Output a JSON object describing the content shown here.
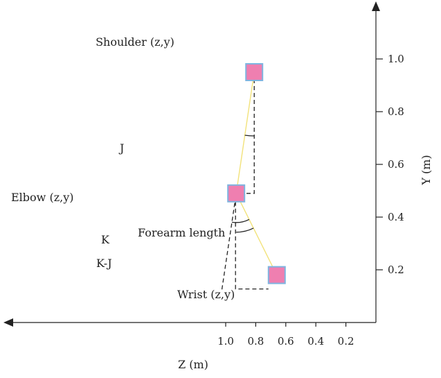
{
  "colors": {
    "segment": "#f2e27a",
    "joint_fill": "#ef7fb0",
    "joint_border": "#7fb4e0",
    "ink": "#222222"
  },
  "axes": {
    "z_label": "Z (m)",
    "y_label": "Y (m)",
    "z_ticks": [
      {
        "value": 1.0,
        "label": "1.0"
      },
      {
        "value": 0.8,
        "label": "0.8"
      },
      {
        "value": 0.6,
        "label": "0.6"
      },
      {
        "value": 0.4,
        "label": "0.4"
      },
      {
        "value": 0.2,
        "label": "0.2"
      }
    ],
    "y_ticks": [
      {
        "value": 1.0,
        "label": "1.0"
      },
      {
        "value": 0.8,
        "label": "0.8"
      },
      {
        "value": 0.6,
        "label": "0.6"
      },
      {
        "value": 0.4,
        "label": "0.4"
      },
      {
        "value": 0.2,
        "label": "0.2"
      }
    ]
  },
  "joints": {
    "shoulder": {
      "label": "Shoulder (z,y)",
      "z": 0.81,
      "y": 0.95
    },
    "elbow": {
      "label": "Elbow (z,y)",
      "z": 0.93,
      "y": 0.49
    },
    "wrist": {
      "label": "Wrist (z,y)",
      "z": 0.66,
      "y": 0.18
    }
  },
  "segment_labels": {
    "forearm": "Forearm length"
  },
  "angle_labels": {
    "j": "J",
    "k": "K",
    "k_minus_j": "K-J"
  }
}
